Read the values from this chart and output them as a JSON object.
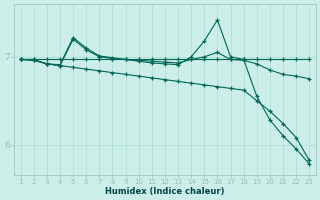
{
  "xlabel": "Humidex (Indice chaleur)",
  "background_color": "#cceee8",
  "grid_color": "#aaddcc",
  "line_color": "#006655",
  "x_ticks": [
    1,
    2,
    3,
    4,
    5,
    6,
    7,
    8,
    9,
    10,
    11,
    12,
    13,
    14,
    15,
    16,
    17,
    18,
    19,
    20,
    21,
    22,
    23
  ],
  "y_ticks": [
    6,
    7
  ],
  "ylim": [
    5.65,
    7.6
  ],
  "xlim": [
    0.5,
    23.5
  ],
  "line1_x": [
    1,
    2,
    3,
    4,
    5,
    6,
    7,
    8,
    9,
    10,
    11,
    12,
    13,
    14,
    15,
    16,
    17,
    18,
    19,
    20,
    21,
    22,
    23
  ],
  "line1_y": [
    6.97,
    6.97,
    6.97,
    6.97,
    6.97,
    6.97,
    6.97,
    6.97,
    6.97,
    6.97,
    6.97,
    6.97,
    6.97,
    6.97,
    6.97,
    6.97,
    6.97,
    6.97,
    6.97,
    6.97,
    6.97,
    6.97,
    6.97
  ],
  "line2_x": [
    1,
    2,
    3,
    4,
    5,
    6,
    7,
    8,
    9,
    10,
    11,
    12,
    13,
    14,
    15,
    16,
    17,
    18,
    19,
    20,
    21,
    22,
    23
  ],
  "line2_y": [
    6.97,
    6.97,
    6.92,
    6.9,
    7.2,
    7.08,
    7.0,
    6.98,
    6.97,
    6.96,
    6.95,
    6.94,
    6.93,
    6.97,
    7.0,
    7.05,
    6.97,
    6.96,
    6.92,
    6.85,
    6.8,
    6.78,
    6.75
  ],
  "line3_x": [
    1,
    2,
    3,
    4,
    5,
    6,
    7,
    8,
    9,
    10,
    11,
    12,
    13,
    14,
    15,
    16,
    17,
    18,
    19,
    20,
    21,
    22,
    23
  ],
  "line3_y": [
    6.97,
    6.96,
    6.92,
    6.91,
    7.22,
    7.1,
    7.01,
    6.99,
    6.97,
    6.95,
    6.93,
    6.92,
    6.91,
    7.0,
    7.18,
    7.42,
    7.0,
    6.97,
    6.55,
    6.28,
    6.1,
    5.95,
    5.78
  ],
  "line4_x": [
    1,
    2,
    3,
    4,
    5,
    6,
    7,
    8,
    9,
    10,
    11,
    12,
    13,
    14,
    15,
    16,
    17,
    18,
    19,
    20,
    21,
    22,
    23
  ],
  "line4_y": [
    6.97,
    6.96,
    6.92,
    6.9,
    6.88,
    6.86,
    6.84,
    6.82,
    6.8,
    6.78,
    6.76,
    6.74,
    6.72,
    6.7,
    6.68,
    6.66,
    6.64,
    6.62,
    6.5,
    6.38,
    6.24,
    6.08,
    5.82
  ]
}
